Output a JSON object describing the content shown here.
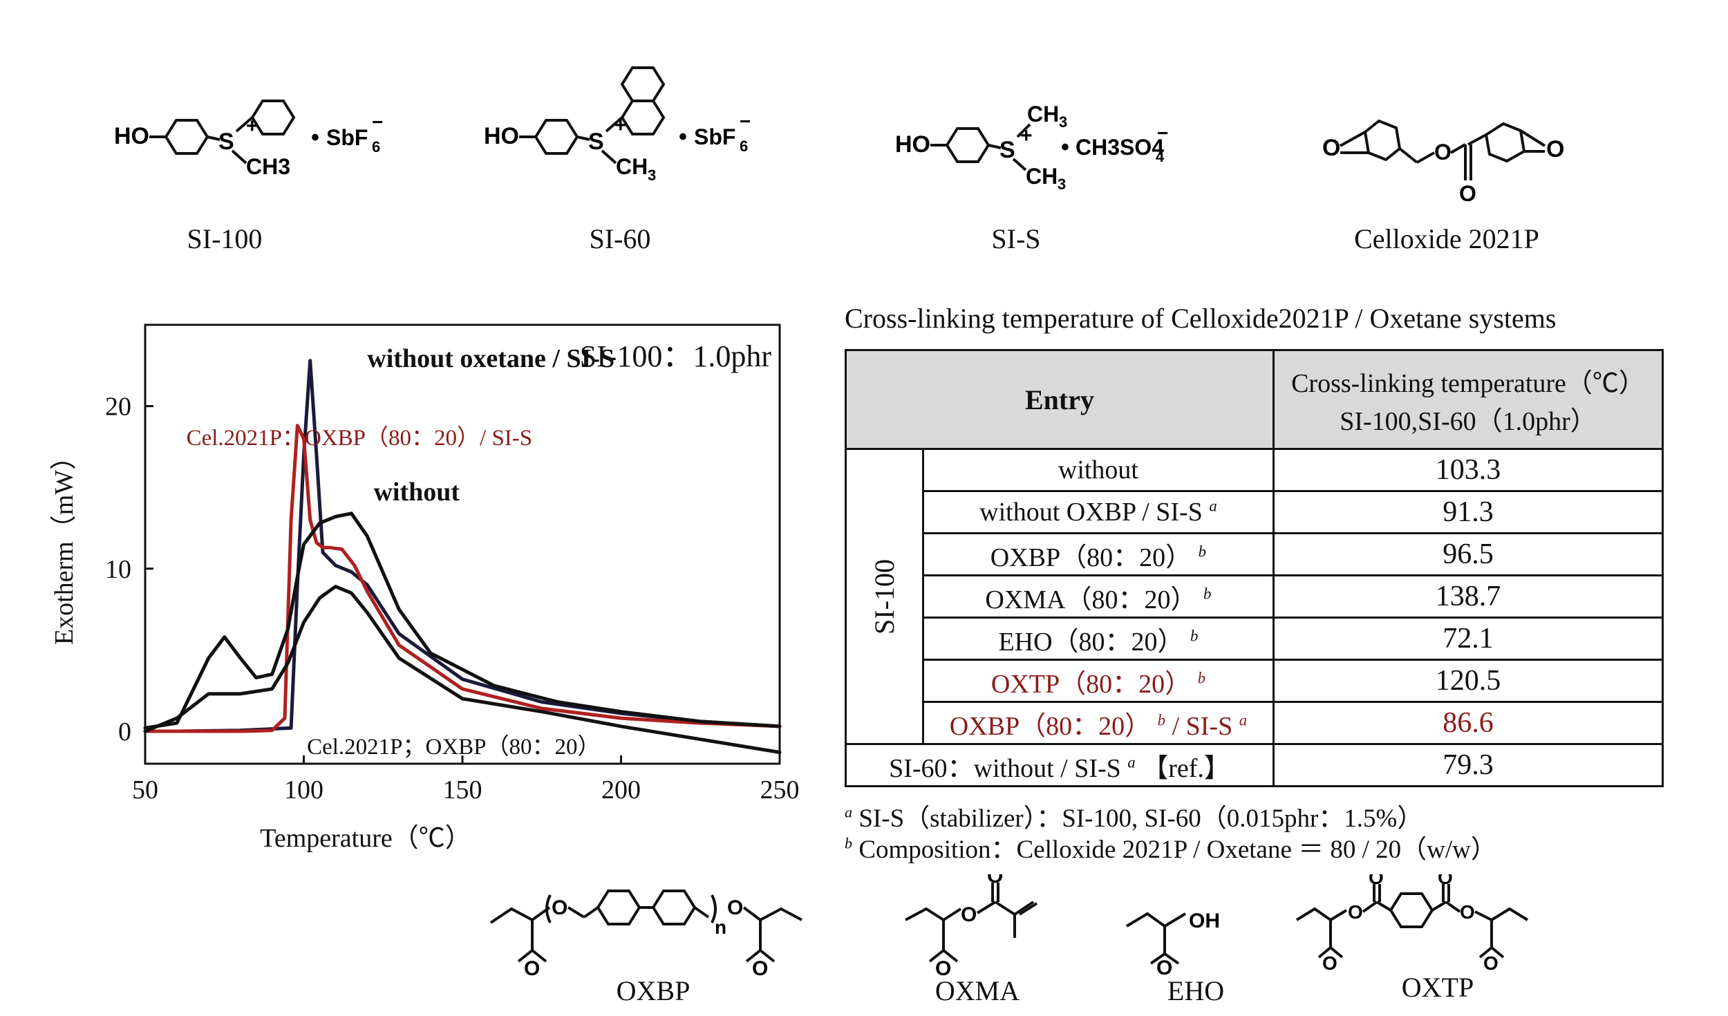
{
  "structures_top": [
    {
      "label": "SI-100",
      "sub": "HO",
      "anion": "SbF6",
      "substituent": "CH3",
      "charge": "+"
    },
    {
      "label": "SI-60",
      "sub": "HO",
      "anion": "SbF6",
      "substituent": "CH3",
      "charge": "+"
    },
    {
      "label": "SI-S",
      "sub": "HO",
      "anion": "CH3SO4",
      "substituent": "CH3",
      "charge": "+"
    },
    {
      "label": "Celloxide 2021P",
      "atom": "O"
    }
  ],
  "structures_bottom": [
    {
      "label": "OXBP",
      "atom": "O",
      "n": "n"
    },
    {
      "label": "OXMA",
      "atom": "O"
    },
    {
      "label": "EHO",
      "atom": "O",
      "group": "OH"
    },
    {
      "label": "OXTP",
      "atom": "O"
    }
  ],
  "chart_data": {
    "type": "line",
    "title": "SI-100：1.0phr",
    "xlabel": "Temperature（℃）",
    "ylabel": "Exotherm（mW）",
    "xlim": [
      50,
      250
    ],
    "ylim": [
      -2,
      25
    ],
    "xticks": [
      50,
      100,
      150,
      200,
      250
    ],
    "yticks": [
      0,
      10,
      20
    ],
    "grid": false,
    "series": [
      {
        "name": "without oxetane / SI-S",
        "color": "#1a1a3a",
        "x": [
          50,
          60,
          80,
          96,
          98,
          100,
          102,
          104,
          106,
          110,
          115,
          120,
          130,
          150,
          175,
          200,
          225,
          250
        ],
        "y": [
          0,
          0,
          0.05,
          0.2,
          9,
          17,
          22.8,
          17,
          11,
          10.2,
          9.8,
          9,
          6,
          3.2,
          1.8,
          1.1,
          0.6,
          0.3
        ]
      },
      {
        "name": "Cel.2021P：OXBP（80：20）/ SI-S",
        "color": "#b02020",
        "x": [
          50,
          80,
          90,
          94,
          96,
          98,
          100,
          102,
          104,
          106,
          108,
          112,
          116,
          120,
          130,
          150,
          175,
          200,
          225,
          250
        ],
        "y": [
          0,
          0,
          0.05,
          0.8,
          13,
          18.8,
          18,
          13,
          11.6,
          11.3,
          11.3,
          11.2,
          10.2,
          8.6,
          5.3,
          2.6,
          1.4,
          0.8,
          0.5,
          0.3
        ]
      },
      {
        "name": "without",
        "color": "#111111",
        "x": [
          50,
          60,
          70,
          75,
          80,
          85,
          90,
          95,
          98,
          100,
          105,
          110,
          115,
          120,
          130,
          140,
          160,
          180,
          200,
          225,
          250
        ],
        "y": [
          0.2,
          0.5,
          4.5,
          5.8,
          4.5,
          3.3,
          3.5,
          6.3,
          9.5,
          11.5,
          12.8,
          13.2,
          13.4,
          12,
          7.5,
          4.8,
          2.8,
          1.8,
          1.2,
          0.6,
          0.3
        ]
      },
      {
        "name": "Cel.2021P；OXBP（80：20）",
        "color": "#111111",
        "x": [
          50,
          60,
          70,
          80,
          90,
          95,
          100,
          105,
          110,
          115,
          120,
          130,
          150,
          175,
          200,
          225,
          250
        ],
        "y": [
          0,
          0.8,
          2.3,
          2.3,
          2.6,
          4.2,
          6.7,
          8.2,
          8.9,
          8.5,
          7.3,
          4.5,
          2,
          1.2,
          0.3,
          -0.5,
          -1.3
        ]
      }
    ],
    "annotations": [
      {
        "text": "without oxetane / SI-S"
      },
      {
        "text": "Cel.2021P：OXBP（80：20）/ SI-S",
        "color": "#8b1a1a"
      },
      {
        "text": "without"
      },
      {
        "text": "Cel.2021P；OXBP（80：20）"
      }
    ]
  },
  "table": {
    "title": "Cross-linking temperature of Celloxide2021P / Oxetane systems",
    "header_entry": "Entry",
    "header_temp_line1": "Cross-linking temperature（℃）",
    "header_temp_line2": "SI-100,SI-60（1.0phr）",
    "group_label": "SI-100",
    "rows": [
      {
        "entry": "without",
        "mark": "",
        "suffix": "",
        "mark2": "",
        "value": "103.3"
      },
      {
        "entry": "without OXBP / SI-S",
        "mark": "a",
        "suffix": "",
        "mark2": "",
        "value": "91.3"
      },
      {
        "entry": "OXBP（80：20）",
        "mark": "b",
        "suffix": "",
        "mark2": "",
        "value": "96.5"
      },
      {
        "entry": "OXMA（80：20）",
        "mark": "b",
        "suffix": "",
        "mark2": "",
        "value": "138.7"
      },
      {
        "entry": "EHO（80：20）",
        "mark": "b",
        "suffix": "",
        "mark2": "",
        "value": "72.1"
      },
      {
        "entry": "OXTP（80：20）",
        "mark": "b",
        "suffix": "",
        "mark2": "",
        "value": "120.5",
        "color": "#8b1a1a",
        "value_color": "#111111"
      },
      {
        "entry": "OXBP（80：20）",
        "mark": "b",
        "suffix": " / SI-S",
        "mark2": "a",
        "value": "86.6",
        "color": "#8b1a1a",
        "value_color": "#8b1a1a"
      }
    ],
    "ref_row": {
      "entry": "SI-60：without / SI-S",
      "mark": "a",
      "ref": "【ref.】",
      "value": "79.3"
    },
    "notes": [
      {
        "mark": "a",
        "text": "SI-S（stabilizer）：SI-100, SI-60（0.015phr：1.5%）"
      },
      {
        "mark": "b",
        "text": "Composition：Celloxide 2021P / Oxetane ＝ 80 / 20（w/w）"
      }
    ]
  }
}
